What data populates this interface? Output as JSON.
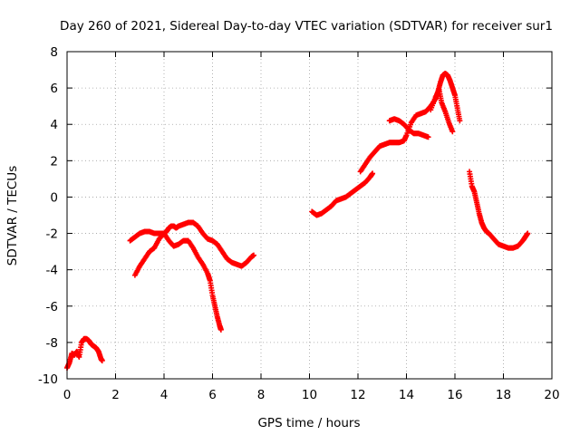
{
  "chart_data": {
    "type": "scatter",
    "title": "Day 260 of 2021, Sidereal Day-to-day VTEC variation (SDTVAR) for receiver sur1",
    "xlabel": "GPS time / hours",
    "ylabel": "SDTVAR / TECUs",
    "xlim": [
      0,
      20
    ],
    "ylim": [
      -10,
      8
    ],
    "xticks": [
      0,
      2,
      4,
      6,
      8,
      10,
      12,
      14,
      16,
      18,
      20
    ],
    "yticks": [
      -10,
      -8,
      -6,
      -4,
      -2,
      0,
      2,
      4,
      6,
      8
    ],
    "grid": true,
    "marker": "+",
    "color": "#ff0000",
    "series": [
      {
        "name": "sdtvar",
        "segments": [
          [
            [
              0.0,
              -9.4
            ],
            [
              0.1,
              -9.1
            ],
            [
              0.2,
              -8.6
            ],
            [
              0.3,
              -8.7
            ],
            [
              0.4,
              -8.5
            ],
            [
              0.5,
              -8.8
            ],
            [
              0.6,
              -8.0
            ],
            [
              0.7,
              -7.8
            ],
            [
              0.8,
              -7.8
            ],
            [
              0.9,
              -7.9
            ],
            [
              1.0,
              -8.1
            ],
            [
              1.1,
              -8.2
            ],
            [
              1.2,
              -8.3
            ],
            [
              1.3,
              -8.5
            ],
            [
              1.4,
              -8.9
            ],
            [
              1.45,
              -9.0
            ]
          ],
          [
            [
              2.6,
              -2.4
            ],
            [
              2.8,
              -2.2
            ],
            [
              3.0,
              -2.0
            ],
            [
              3.2,
              -1.9
            ],
            [
              3.4,
              -1.9
            ],
            [
              3.6,
              -2.0
            ],
            [
              3.8,
              -2.0
            ],
            [
              4.0,
              -2.0
            ],
            [
              4.1,
              -1.9
            ],
            [
              4.2,
              -1.7
            ],
            [
              4.3,
              -1.6
            ],
            [
              4.4,
              -1.6
            ],
            [
              4.5,
              -1.7
            ],
            [
              4.6,
              -1.6
            ],
            [
              4.8,
              -1.5
            ],
            [
              5.0,
              -1.4
            ],
            [
              5.2,
              -1.4
            ],
            [
              5.4,
              -1.6
            ],
            [
              5.6,
              -2.0
            ],
            [
              5.8,
              -2.3
            ],
            [
              6.0,
              -2.4
            ],
            [
              6.2,
              -2.6
            ],
            [
              6.4,
              -3.0
            ],
            [
              6.6,
              -3.4
            ],
            [
              6.8,
              -3.6
            ],
            [
              7.0,
              -3.7
            ],
            [
              7.2,
              -3.8
            ],
            [
              7.4,
              -3.6
            ],
            [
              7.6,
              -3.3
            ],
            [
              7.7,
              -3.2
            ]
          ],
          [
            [
              2.8,
              -4.3
            ],
            [
              3.0,
              -3.8
            ],
            [
              3.2,
              -3.4
            ],
            [
              3.4,
              -3.0
            ],
            [
              3.6,
              -2.8
            ],
            [
              3.8,
              -2.3
            ],
            [
              4.0,
              -2.0
            ],
            [
              4.2,
              -2.4
            ],
            [
              4.4,
              -2.7
            ],
            [
              4.6,
              -2.6
            ],
            [
              4.8,
              -2.4
            ],
            [
              5.0,
              -2.4
            ],
            [
              5.2,
              -2.8
            ],
            [
              5.4,
              -3.3
            ],
            [
              5.6,
              -3.7
            ],
            [
              5.8,
              -4.2
            ],
            [
              5.9,
              -4.6
            ],
            [
              6.0,
              -5.4
            ],
            [
              6.1,
              -6.0
            ],
            [
              6.2,
              -6.6
            ],
            [
              6.3,
              -7.1
            ],
            [
              6.35,
              -7.3
            ]
          ],
          [
            [
              10.1,
              -0.8
            ],
            [
              10.3,
              -1.0
            ],
            [
              10.5,
              -0.9
            ],
            [
              10.7,
              -0.7
            ],
            [
              10.9,
              -0.5
            ],
            [
              11.1,
              -0.2
            ],
            [
              11.3,
              -0.1
            ],
            [
              11.5,
              0.0
            ],
            [
              11.7,
              0.2
            ],
            [
              11.9,
              0.4
            ],
            [
              12.1,
              0.6
            ],
            [
              12.3,
              0.8
            ],
            [
              12.5,
              1.1
            ],
            [
              12.6,
              1.3
            ]
          ],
          [
            [
              12.1,
              1.4
            ],
            [
              12.3,
              1.8
            ],
            [
              12.5,
              2.2
            ],
            [
              12.7,
              2.5
            ],
            [
              12.9,
              2.8
            ],
            [
              13.1,
              2.9
            ],
            [
              13.3,
              3.0
            ],
            [
              13.5,
              3.0
            ],
            [
              13.7,
              3.0
            ],
            [
              13.9,
              3.1
            ],
            [
              14.0,
              3.4
            ],
            [
              14.2,
              4.1
            ],
            [
              14.4,
              4.5
            ],
            [
              14.6,
              4.6
            ],
            [
              14.8,
              4.7
            ],
            [
              15.0,
              5.0
            ],
            [
              15.2,
              5.4
            ],
            [
              15.3,
              5.8
            ],
            [
              15.4,
              6.3
            ],
            [
              15.5,
              6.7
            ],
            [
              15.6,
              6.8
            ],
            [
              15.7,
              6.7
            ],
            [
              15.8,
              6.4
            ],
            [
              15.9,
              6.0
            ],
            [
              16.0,
              5.6
            ],
            [
              16.1,
              4.9
            ],
            [
              16.2,
              4.2
            ]
          ],
          [
            [
              13.3,
              4.2
            ],
            [
              13.5,
              4.3
            ],
            [
              13.7,
              4.2
            ],
            [
              13.9,
              4.0
            ],
            [
              14.1,
              3.7
            ],
            [
              14.3,
              3.5
            ],
            [
              14.5,
              3.5
            ],
            [
              14.7,
              3.4
            ],
            [
              14.9,
              3.3
            ]
          ],
          [
            [
              15.0,
              4.8
            ],
            [
              15.2,
              5.5
            ],
            [
              15.35,
              5.9
            ],
            [
              15.45,
              5.2
            ],
            [
              15.6,
              4.7
            ],
            [
              15.75,
              4.1
            ],
            [
              15.9,
              3.6
            ]
          ],
          [
            [
              16.6,
              1.4
            ],
            [
              16.7,
              0.6
            ],
            [
              16.8,
              0.3
            ],
            [
              16.9,
              -0.3
            ],
            [
              17.0,
              -0.9
            ],
            [
              17.1,
              -1.4
            ],
            [
              17.2,
              -1.7
            ],
            [
              17.3,
              -1.9
            ],
            [
              17.4,
              -2.0
            ],
            [
              17.6,
              -2.3
            ],
            [
              17.8,
              -2.6
            ],
            [
              18.0,
              -2.7
            ],
            [
              18.2,
              -2.8
            ],
            [
              18.4,
              -2.8
            ],
            [
              18.6,
              -2.7
            ],
            [
              18.8,
              -2.4
            ],
            [
              18.9,
              -2.2
            ],
            [
              19.0,
              -2.0
            ]
          ]
        ]
      }
    ]
  }
}
